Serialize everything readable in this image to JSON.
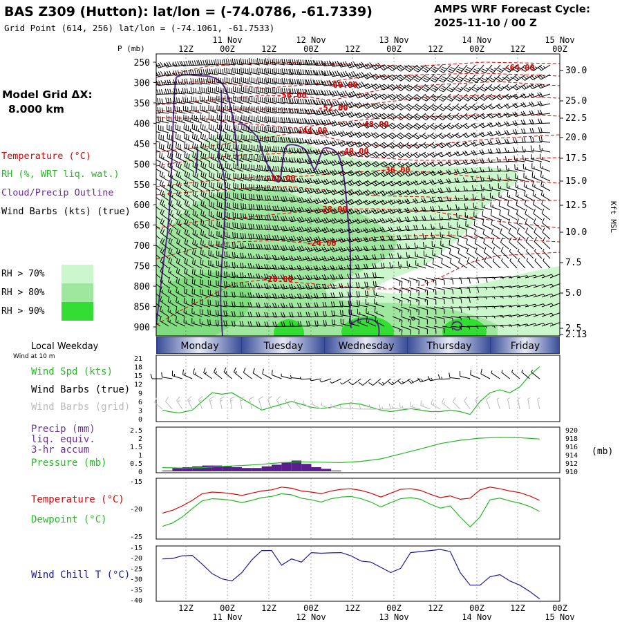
{
  "header": {
    "title": "BAS Z309 (Hutton):  lat/lon = (-74.0786, -61.7339)",
    "subtitle": "Grid Point (614, 256) lat/lon = (-74.1061, -61.7533)",
    "cycle_line1": "AMPS WRF Forecast Cycle:",
    "cycle_line2": "2025-11-10 / 00  Z"
  },
  "left_panel": {
    "grid_label": "Model Grid ΔX:",
    "grid_value": "8.000 km",
    "legend": [
      {
        "text": "Temperature (°C)",
        "color": "#e00000"
      },
      {
        "text": "RH (%, WRT liq. wat.)",
        "color": "#22bb22"
      },
      {
        "text": "Cloud/Precip Outline",
        "color": "#6a2f9f"
      },
      {
        "text": "Wind Barbs (kts) (true)",
        "color": "#000000"
      }
    ],
    "rh_levels": [
      {
        "text": "RH > 70%",
        "color": "#ccf7cc"
      },
      {
        "text": "RH > 80%",
        "color": "#9fe69f"
      },
      {
        "text": "RH > 90%",
        "color": "#33dd33"
      }
    ]
  },
  "time_axis": {
    "ticks": [
      "12Z",
      "00Z",
      "12Z",
      "00Z",
      "12Z",
      "00Z",
      "12Z",
      "00Z",
      "12Z",
      "00Z"
    ],
    "dates": [
      "11 Nov",
      "12 Nov",
      "13 Nov",
      "14 Nov",
      "15 Nov"
    ]
  },
  "days": [
    "Monday",
    "Tuesday",
    "Wednesday",
    "Thursday",
    "Friday"
  ],
  "cross_section": {
    "p_label": "P (mb)",
    "right_label": "Kft MSL",
    "pressure_ticks": [
      "250",
      "300",
      "350",
      "400",
      "450",
      "500",
      "550",
      "600",
      "650",
      "700",
      "750",
      "800",
      "850",
      "900"
    ],
    "height_ticks": [
      "30.0",
      "25.0",
      "22.5",
      "20.0",
      "17.5",
      "15.0",
      "12.5",
      "10.0",
      "7.5",
      "5.0",
      "2.5",
      "2.13"
    ],
    "temperature_labels": [
      "-64.00",
      "-60.00",
      "-56.00",
      "-52.00",
      "-48.00",
      "-44.00",
      "-40.00",
      "-36.00",
      "-32.00",
      "-28.00",
      "-24.00",
      "-20.00"
    ]
  },
  "panel_wind": {
    "local_weekday": "Local Weekday",
    "wind_at": "Wind at 10 m",
    "labels": [
      {
        "text": "Wind Spd (kts)",
        "color": "#22bb22"
      },
      {
        "text": "Wind Barbs (true)",
        "color": "#000000"
      },
      {
        "text": "Wind Barbs (grid)",
        "color": "#bbbbbb"
      }
    ],
    "y_ticks": [
      "0",
      "3",
      "6",
      "9",
      "12",
      "15",
      "18",
      "21"
    ]
  },
  "panel_precip": {
    "labels": [
      {
        "text": "Precip (mm)",
        "color": "#6a2f9f"
      },
      {
        "text": "liq. equiv.",
        "color": "#6a2f9f"
      },
      {
        "text": "3-hr accum",
        "color": "#6a2f9f"
      },
      {
        "text": "Pressure (mb)",
        "color": "#22bb22"
      }
    ],
    "left_ticks": [
      "0",
      "0.5",
      "1",
      "1.5",
      "2",
      "2.5"
    ],
    "right_ticks": [
      "910",
      "912",
      "914",
      "916",
      "918",
      "920"
    ],
    "right_unit": "(mb)"
  },
  "panel_temp": {
    "labels": [
      {
        "text": "Temperature (°C)",
        "color": "#e00000"
      },
      {
        "text": "Dewpoint (°C)",
        "color": "#22bb22"
      }
    ],
    "y_ticks": [
      "-15",
      "-20",
      "-25"
    ]
  },
  "panel_chill": {
    "labels": [
      {
        "text": "Wind Chill T (°C)",
        "color": "#1a1aa0"
      }
    ],
    "y_ticks": [
      "-15",
      "-20",
      "-25",
      "-30",
      "-35",
      "-40"
    ]
  },
  "chart_data": [
    {
      "type": "line",
      "name": "wind-speed-10m",
      "x_hours": [
        0,
        6,
        12,
        18,
        24,
        30,
        36,
        42,
        48,
        54,
        60,
        66,
        72,
        78,
        84,
        90,
        96,
        102,
        108,
        114
      ],
      "ylabel": "Wind Spd (kts)",
      "ylim": [
        0,
        21
      ],
      "series": [
        {
          "name": "Wind Spd (kts)",
          "color": "#22bb22",
          "x": [
            0,
            2,
            5,
            9,
            12,
            15,
            18,
            21,
            24,
            27,
            30,
            33,
            36,
            39,
            42,
            45,
            48,
            51,
            54,
            57,
            60,
            63,
            66,
            69,
            72,
            75,
            78,
            81,
            84,
            87,
            90,
            93,
            96,
            99,
            102,
            105,
            108,
            111,
            114
          ],
          "values": [
            3,
            2.5,
            2,
            3,
            6,
            9,
            8.5,
            9,
            7,
            5,
            3,
            4,
            5,
            6,
            5,
            4,
            3.5,
            4,
            5,
            5.5,
            5,
            4,
            3,
            2.5,
            3,
            3.5,
            3,
            2.5,
            2.5,
            3,
            2.5,
            1.5,
            6,
            9,
            10,
            9,
            11,
            15,
            18
          ]
        }
      ]
    },
    {
      "type": "bar",
      "name": "precip-3hr",
      "ylabel": "Precip (mm)",
      "ylim": [
        0,
        2.5
      ],
      "series": [
        {
          "name": "Precip (mm)",
          "color": "#5a1f8f",
          "x": [
            3,
            6,
            9,
            12,
            15,
            18,
            21,
            24,
            27,
            30,
            33,
            36,
            39,
            42,
            45,
            48,
            51,
            54
          ],
          "values": [
            0.05,
            0.2,
            0.25,
            0.3,
            0.35,
            0.35,
            0.3,
            0.25,
            0.2,
            0.2,
            0.3,
            0.4,
            0.55,
            0.65,
            0.45,
            0.25,
            0.15,
            0.05
          ]
        }
      ]
    },
    {
      "type": "line",
      "name": "pressure",
      "ylabel": "Pressure (mb)",
      "ylim": [
        910,
        920
      ],
      "series": [
        {
          "name": "Pressure (mb)",
          "color": "#22bb22",
          "x": [
            0,
            6,
            12,
            18,
            24,
            30,
            36,
            42,
            48,
            54,
            60,
            66,
            72,
            78,
            84,
            90,
            96,
            102,
            108,
            114
          ],
          "values": [
            910.9,
            910.8,
            910.9,
            911.2,
            911.4,
            911.7,
            912.1,
            912.3,
            912.2,
            912.1,
            912.4,
            913.0,
            914.2,
            915.4,
            916.7,
            917.5,
            918.0,
            918.2,
            918.1,
            917.8
          ]
        }
      ]
    },
    {
      "type": "line",
      "name": "temperature-dewpoint",
      "ylim": [
        -25,
        -15
      ],
      "series": [
        {
          "name": "Temperature (°C)",
          "color": "#e00000",
          "x": [
            0,
            3,
            6,
            9,
            12,
            15,
            18,
            21,
            24,
            27,
            30,
            33,
            36,
            39,
            42,
            45,
            48,
            51,
            54,
            57,
            60,
            63,
            66,
            69,
            72,
            75,
            78,
            81,
            84,
            87,
            90,
            93,
            96,
            99,
            102,
            105,
            108,
            111,
            114
          ],
          "values": [
            -20.8,
            -20.3,
            -19.5,
            -18.5,
            -17.3,
            -17.0,
            -17.1,
            -17.3,
            -17.6,
            -17.2,
            -16.8,
            -16.6,
            -16.1,
            -16.3,
            -16.8,
            -17.0,
            -17.3,
            -16.8,
            -16.5,
            -16.4,
            -16.7,
            -17.2,
            -17.9,
            -17.2,
            -16.5,
            -16.4,
            -16.7,
            -17.4,
            -18.0,
            -17.7,
            -18.3,
            -18.1,
            -16.6,
            -16.1,
            -16.4,
            -16.8,
            -17.1,
            -17.7,
            -18.5
          ]
        },
        {
          "name": "Dewpoint (°C)",
          "color": "#22bb22",
          "x": [
            0,
            3,
            6,
            9,
            12,
            15,
            18,
            21,
            24,
            27,
            30,
            33,
            36,
            39,
            42,
            45,
            48,
            51,
            54,
            57,
            60,
            63,
            66,
            69,
            72,
            75,
            78,
            81,
            84,
            87,
            90,
            93,
            96,
            99,
            102,
            105,
            108,
            111,
            114
          ],
          "values": [
            -23.2,
            -22.6,
            -21.5,
            -20.0,
            -18.6,
            -18.2,
            -18.3,
            -18.5,
            -18.9,
            -18.5,
            -18.0,
            -17.8,
            -17.3,
            -17.5,
            -18.1,
            -18.4,
            -18.8,
            -18.2,
            -17.9,
            -17.8,
            -18.2,
            -18.8,
            -19.7,
            -18.9,
            -18.2,
            -18.0,
            -18.3,
            -19.2,
            -19.9,
            -19.5,
            -21.5,
            -23.3,
            -21.5,
            -18.4,
            -18.1,
            -18.6,
            -19.0,
            -19.6,
            -20.5
          ]
        }
      ]
    },
    {
      "type": "line",
      "name": "wind-chill",
      "ylim": [
        -40,
        -15
      ],
      "series": [
        {
          "name": "Wind Chill T (°C)",
          "color": "#1a1aa0",
          "x": [
            0,
            3,
            6,
            9,
            12,
            15,
            18,
            21,
            24,
            27,
            30,
            33,
            36,
            39,
            42,
            45,
            48,
            51,
            54,
            57,
            60,
            63,
            66,
            69,
            72,
            75,
            78,
            81,
            84,
            87,
            90,
            93,
            96,
            99,
            102,
            105,
            108,
            111,
            114
          ],
          "values": [
            -20.5,
            -20.3,
            -19.0,
            -18.8,
            -23.0,
            -27.5,
            -30.0,
            -31.0,
            -27.0,
            -21.0,
            -16.5,
            -16.5,
            -23.5,
            -20.5,
            -22.0,
            -17.5,
            -17.8,
            -17.6,
            -17.5,
            -19.0,
            -21.5,
            -22.0,
            -24.5,
            -27.0,
            -25.0,
            -17.5,
            -17.0,
            -16.5,
            -16.0,
            -17.0,
            -27.0,
            -33.0,
            -33.0,
            -29.0,
            -28.0,
            -31.0,
            -33.0,
            -36.0,
            -39.5
          ]
        }
      ]
    }
  ]
}
